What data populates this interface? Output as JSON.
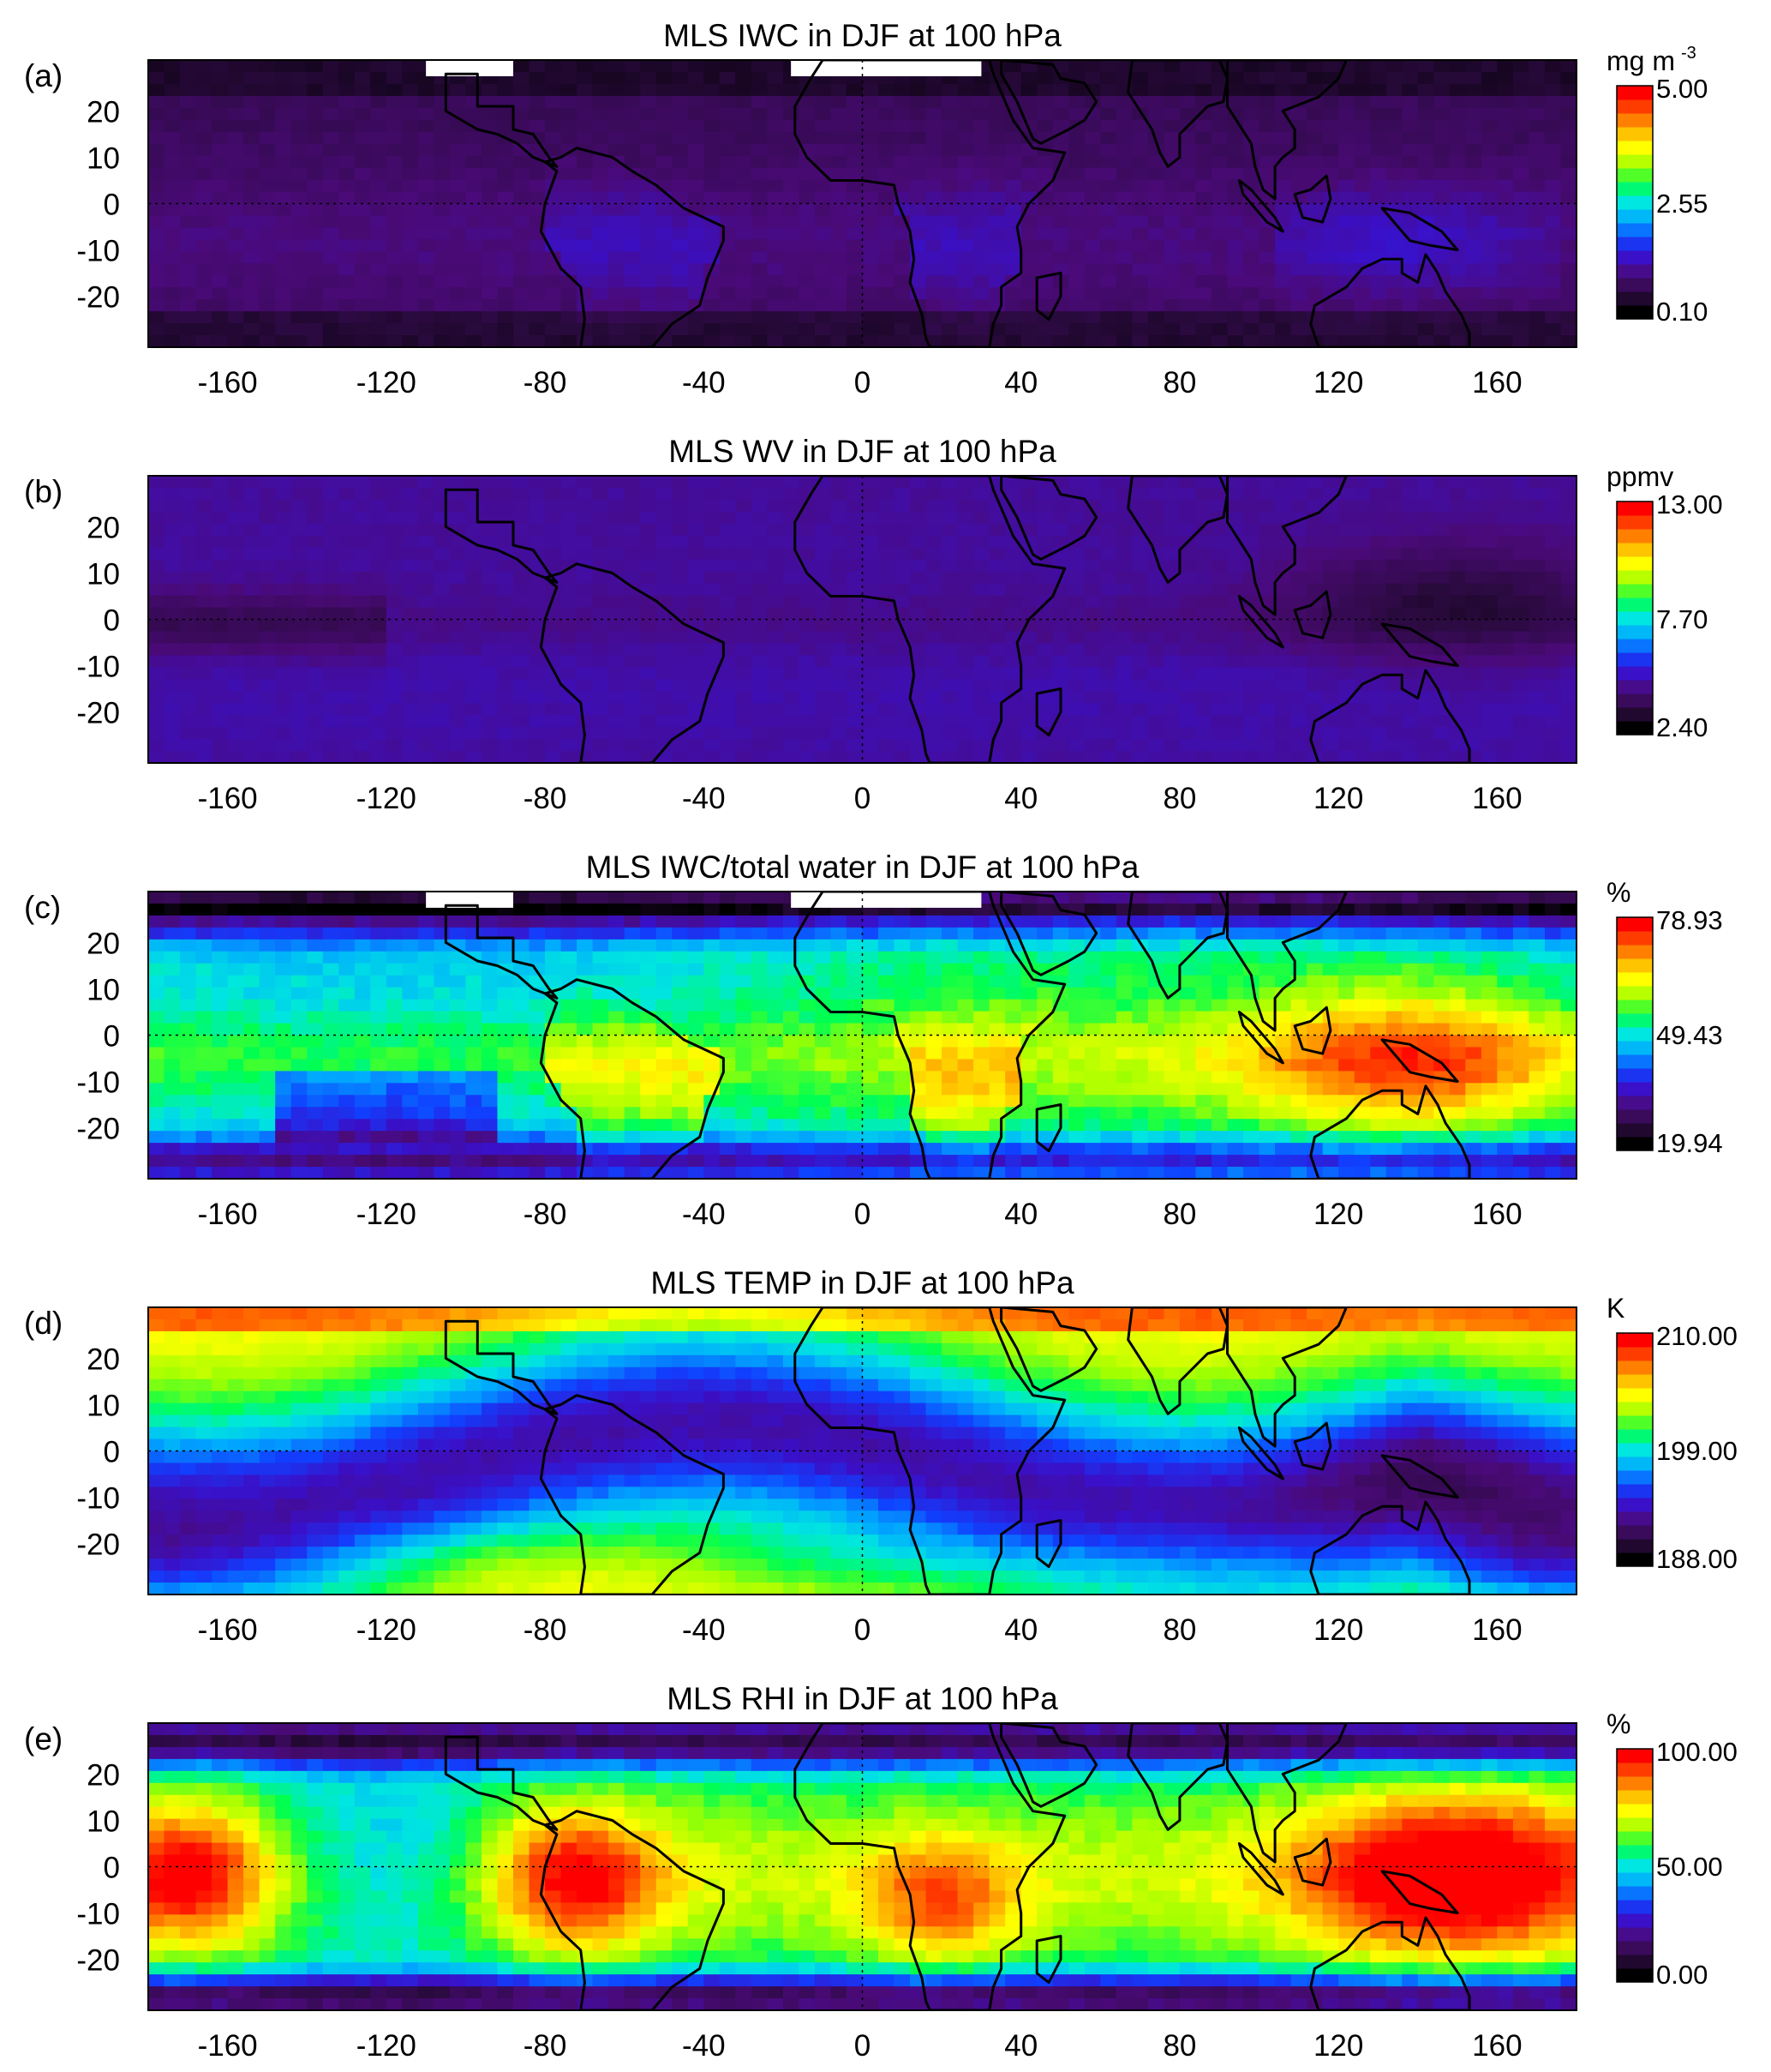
{
  "figure": {
    "panels": [
      {
        "label": "(a)",
        "title": "MLS IWC in DJF at 100 hPa",
        "units_main": "mg m",
        "units_sup": "-3",
        "colorbar_ticks": [
          "5.00",
          "2.55",
          "0.10"
        ],
        "field": "iwc"
      },
      {
        "label": "(b)",
        "title": "MLS WV in DJF at 100 hPa",
        "units_main": "ppmv",
        "units_sup": "",
        "colorbar_ticks": [
          "13.00",
          "7.70",
          "2.40"
        ],
        "field": "wv"
      },
      {
        "label": "(c)",
        "title": "MLS IWC/total water in DJF at 100 hPa",
        "units_main": "%",
        "units_sup": "",
        "colorbar_ticks": [
          "78.93",
          "49.43",
          "19.94"
        ],
        "field": "ratio"
      },
      {
        "label": "(d)",
        "title": "MLS TEMP in DJF at 100 hPa",
        "units_main": "K",
        "units_sup": "",
        "colorbar_ticks": [
          "210.00",
          "199.00",
          "188.00"
        ],
        "field": "temp"
      },
      {
        "label": "(e)",
        "title": "MLS RHI in DJF at 100 hPa",
        "units_main": "%",
        "units_sup": "",
        "colorbar_ticks": [
          "100.00",
          "50.00",
          "0.00"
        ],
        "field": "rhi"
      }
    ],
    "x_ticks": [
      "-160",
      "-120",
      "-80",
      "-40",
      "0",
      "40",
      "80",
      "120",
      "160"
    ],
    "y_ticks": [
      "20",
      "10",
      "0",
      "-10",
      "-20"
    ]
  },
  "chart_data": {
    "type": "heatmap",
    "x_range": [
      -180,
      180
    ],
    "y_range": [
      -31,
      31
    ],
    "x_tick_values": [
      -160,
      -120,
      -80,
      -40,
      0,
      40,
      80,
      120,
      160
    ],
    "y_tick_values": [
      20,
      10,
      0,
      -10,
      -20
    ],
    "colormap": [
      "#000000",
      "#2a0a3e",
      "#4a0a78",
      "#3a10c8",
      "#1040ff",
      "#00a8ff",
      "#00e6e0",
      "#00ff50",
      "#a0ff00",
      "#ffff00",
      "#ffb000",
      "#ff5000",
      "#ff0000"
    ],
    "coastlines": true,
    "dotted_reference_lines": [
      "equator",
      "prime meridian"
    ],
    "panels": [
      {
        "name": "IWC",
        "units": "mg m-3",
        "range": [
          0.1,
          5.0
        ]
      },
      {
        "name": "WV",
        "units": "ppmv",
        "range": [
          2.4,
          13.0
        ]
      },
      {
        "name": "IWC/total water",
        "units": "%",
        "range": [
          19.94,
          78.93
        ]
      },
      {
        "name": "TEMP",
        "units": "K",
        "range": [
          188.0,
          210.0
        ]
      },
      {
        "name": "RHI",
        "units": "%",
        "range": [
          0.0,
          100.0
        ]
      }
    ]
  }
}
